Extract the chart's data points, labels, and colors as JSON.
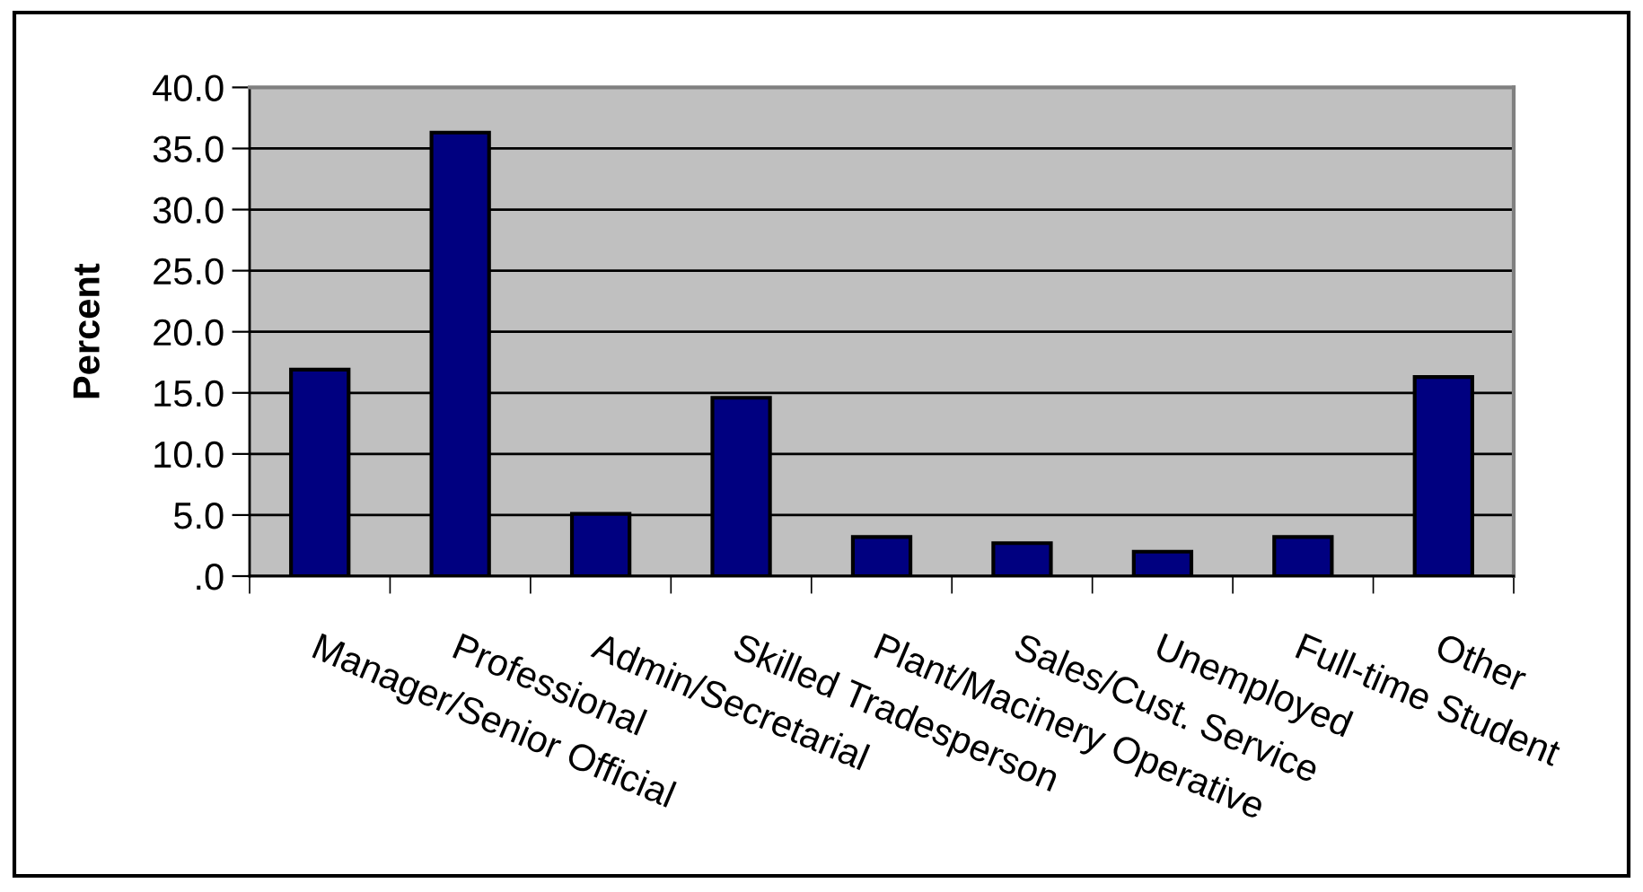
{
  "chart_data": {
    "type": "bar",
    "ylabel": "Percent",
    "categories": [
      "Manager/Senior Official",
      "Professional",
      "Admin/Secretarial",
      "Skilled Tradesperson",
      "Plant/Macinery Operative",
      "Sales/Cust. Service",
      "Unemployed",
      "Full-time Student",
      "Other"
    ],
    "values": [
      16.9,
      36.3,
      5.1,
      14.6,
      3.2,
      2.7,
      2.0,
      3.2,
      16.3
    ],
    "color": "#000080",
    "ylim": [
      0,
      40
    ],
    "yticks": [
      {
        "value": 0,
        "label": ".0"
      },
      {
        "value": 5,
        "label": "5.0"
      },
      {
        "value": 10,
        "label": "10.0"
      },
      {
        "value": 15,
        "label": "15.0"
      },
      {
        "value": 20,
        "label": "20.0"
      },
      {
        "value": 25,
        "label": "25.0"
      },
      {
        "value": 30,
        "label": "30.0"
      },
      {
        "value": 35,
        "label": "35.0"
      },
      {
        "value": 40,
        "label": "40.0"
      }
    ],
    "grid": "y"
  }
}
